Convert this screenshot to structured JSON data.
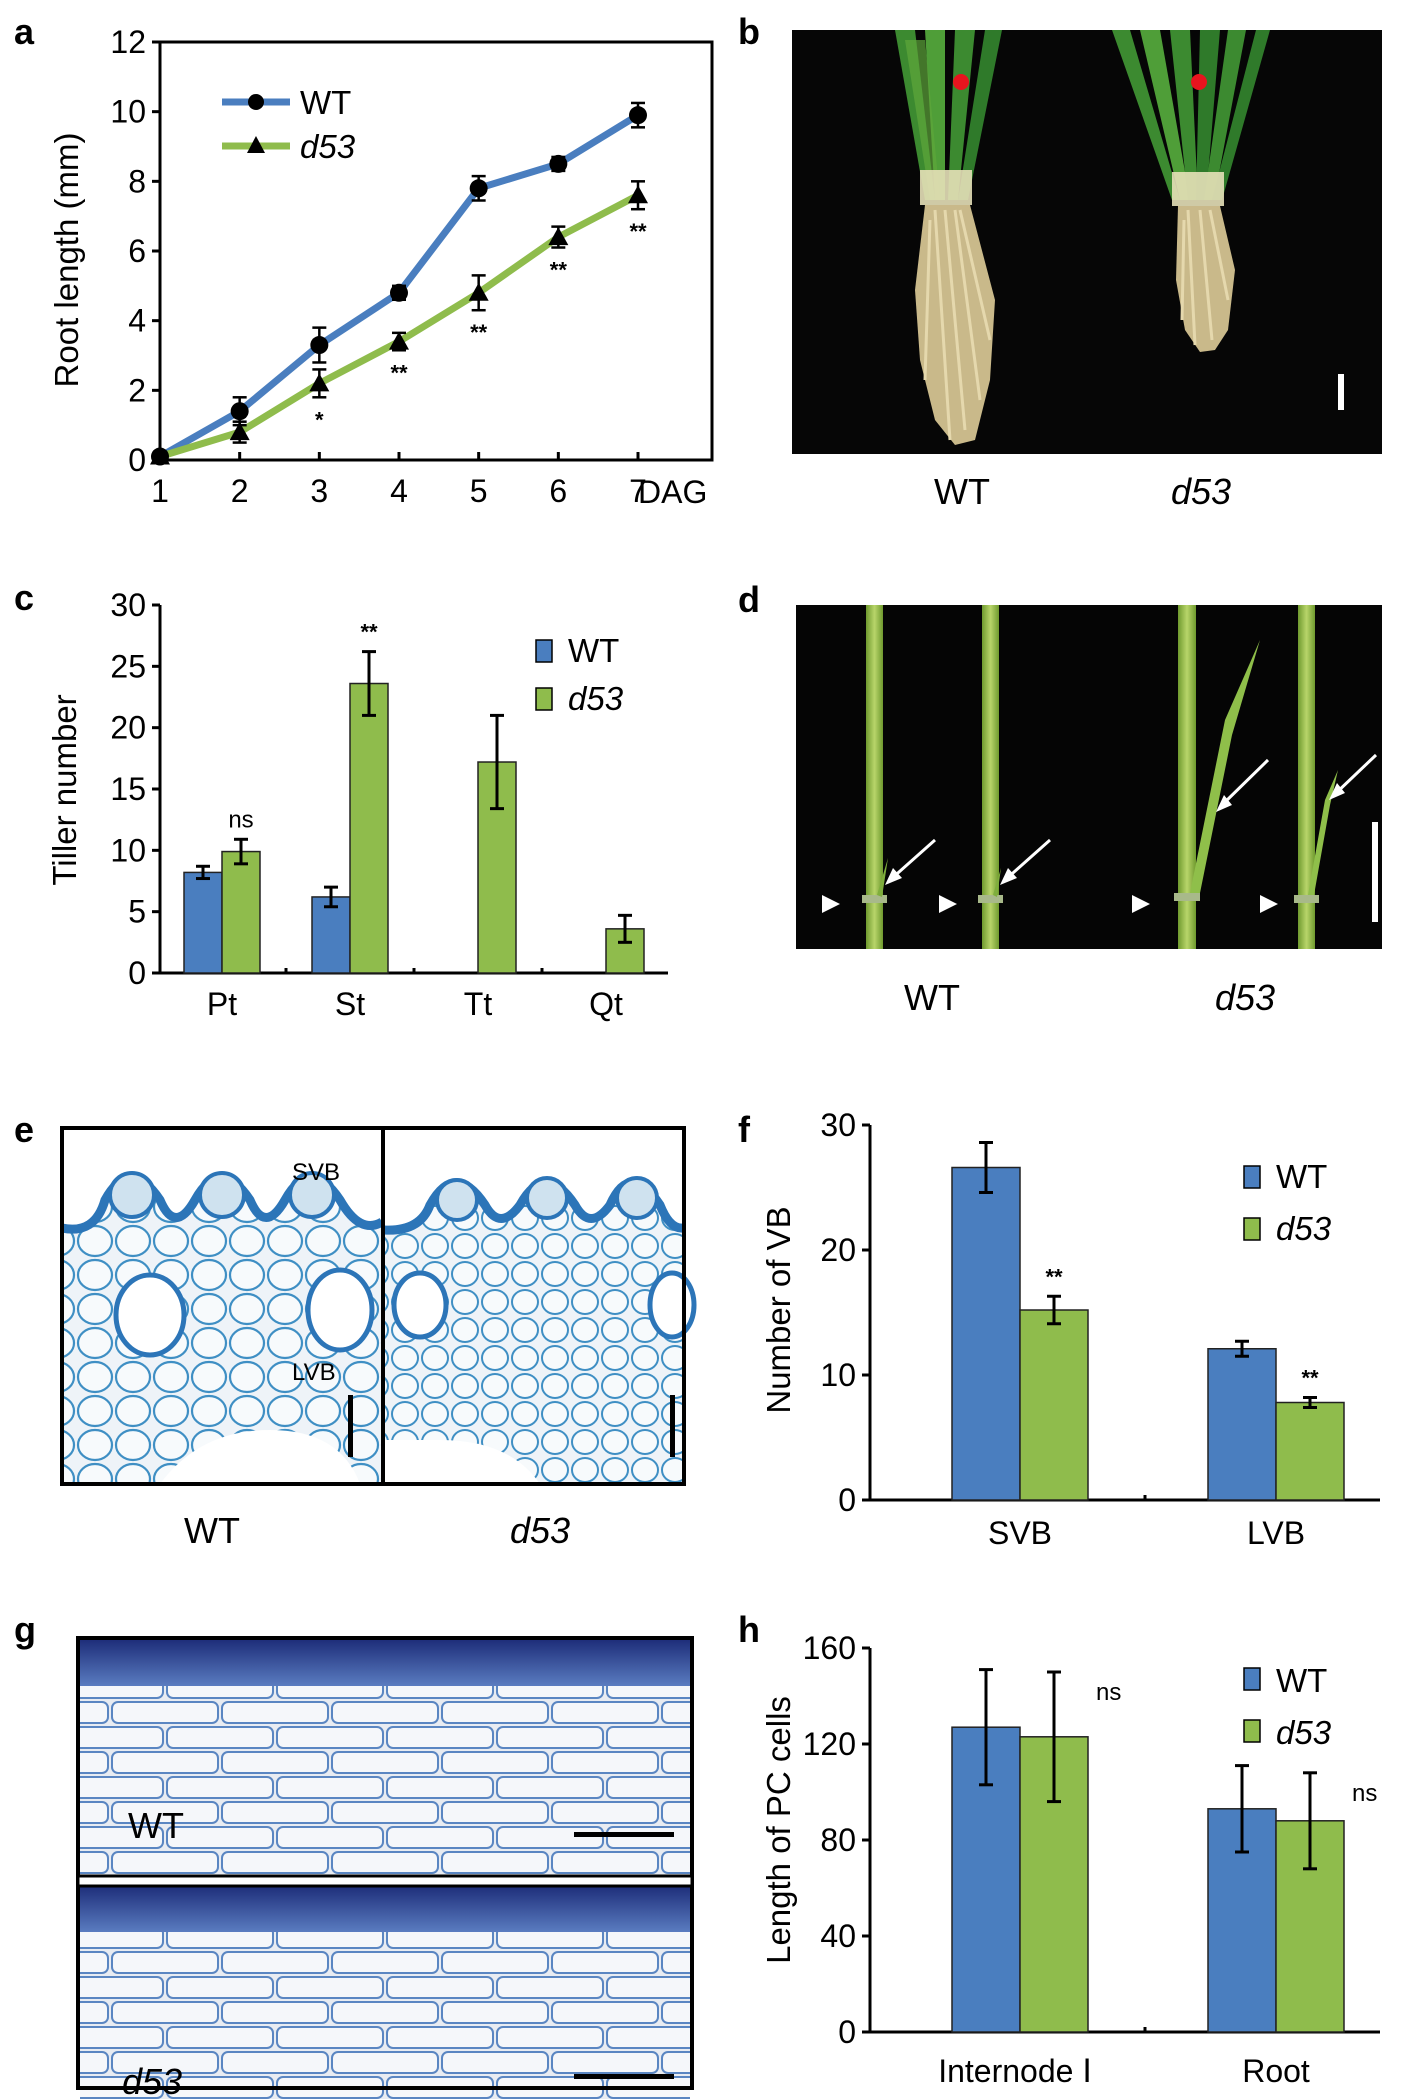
{
  "panels": {
    "a": {
      "label": "a",
      "chart_data": {
        "type": "line",
        "ylabel": "Root length (mm)",
        "xlabel": "DAG",
        "x": [
          1,
          2,
          3,
          4,
          5,
          6,
          7
        ],
        "x_ticks": [
          "1",
          "2",
          "3",
          "4",
          "5",
          "6",
          "7"
        ],
        "y_ticks": [
          "0",
          "2",
          "4",
          "6",
          "8",
          "10",
          "12"
        ],
        "ylim": [
          0,
          12
        ],
        "series": [
          {
            "name": "WT",
            "color": "#4a7ebf",
            "values": [
              0.1,
              1.4,
              3.3,
              4.8,
              7.8,
              8.5,
              9.9
            ],
            "err": [
              0.1,
              0.4,
              0.5,
              0.2,
              0.35,
              0.2,
              0.35
            ]
          },
          {
            "name": "d53",
            "color": "#8fbc4c",
            "values": [
              0.1,
              0.8,
              2.2,
              3.4,
              4.8,
              6.4,
              7.6
            ],
            "err": [
              0.1,
              0.3,
              0.4,
              0.25,
              0.5,
              0.3,
              0.4
            ]
          }
        ],
        "significance": [
          "",
          "",
          "*",
          "**",
          "**",
          "**",
          "**"
        ]
      }
    },
    "b": {
      "label": "b",
      "captions": [
        "WT",
        "d53"
      ]
    },
    "c": {
      "label": "c",
      "chart_data": {
        "type": "bar",
        "ylabel": "Tiller number",
        "categories": [
          "Pt",
          "St",
          "Tt",
          "Qt"
        ],
        "y_ticks": [
          "0",
          "5",
          "10",
          "15",
          "20",
          "25",
          "30"
        ],
        "ylim": [
          0,
          30
        ],
        "series": [
          {
            "name": "WT",
            "color": "#4a7ebf",
            "values": [
              8.2,
              6.2,
              0,
              0
            ],
            "err": [
              0.5,
              0.8,
              0,
              0
            ]
          },
          {
            "name": "d53",
            "color": "#8fbc4c",
            "values": [
              9.9,
              23.6,
              17.2,
              3.6
            ],
            "err": [
              1.0,
              2.6,
              3.8,
              1.1
            ]
          }
        ],
        "annotations": [
          "ns",
          "**",
          "",
          ""
        ]
      }
    },
    "d": {
      "label": "d",
      "captions": [
        "WT",
        "d53"
      ]
    },
    "e": {
      "label": "e",
      "captions": [
        "WT",
        "d53"
      ],
      "photo_labels": {
        "svb": "SVB",
        "lvb": "LVB"
      }
    },
    "f": {
      "label": "f",
      "chart_data": {
        "type": "bar",
        "ylabel": "Number of VB",
        "categories": [
          "SVB",
          "LVB"
        ],
        "y_ticks": [
          "0",
          "10",
          "20",
          "30"
        ],
        "ylim": [
          0,
          30
        ],
        "series": [
          {
            "name": "WT",
            "color": "#4a7ebf",
            "values": [
              26.6,
              12.1
            ],
            "err": [
              2.0,
              0.6
            ]
          },
          {
            "name": "d53",
            "color": "#8fbc4c",
            "values": [
              15.2,
              7.8
            ],
            "err": [
              1.1,
              0.4
            ]
          }
        ],
        "annotations": [
          "**",
          "**"
        ]
      }
    },
    "g": {
      "label": "g",
      "photo_labels": {
        "wt": "WT",
        "d53": "d53"
      }
    },
    "h": {
      "label": "h",
      "chart_data": {
        "type": "bar",
        "ylabel": "Length of PC cells",
        "categories": [
          "Internode Ⅰ",
          "Root"
        ],
        "y_ticks": [
          "0",
          "40",
          "80",
          "120",
          "160"
        ],
        "ylim": [
          0,
          160
        ],
        "series": [
          {
            "name": "WT",
            "color": "#4a7ebf",
            "values": [
              127,
              93
            ],
            "err": [
              24,
              18
            ]
          },
          {
            "name": "d53",
            "color": "#8fbc4c",
            "values": [
              123,
              88
            ],
            "err": [
              27,
              20
            ]
          }
        ],
        "annotations": [
          "ns",
          "ns"
        ]
      }
    }
  }
}
